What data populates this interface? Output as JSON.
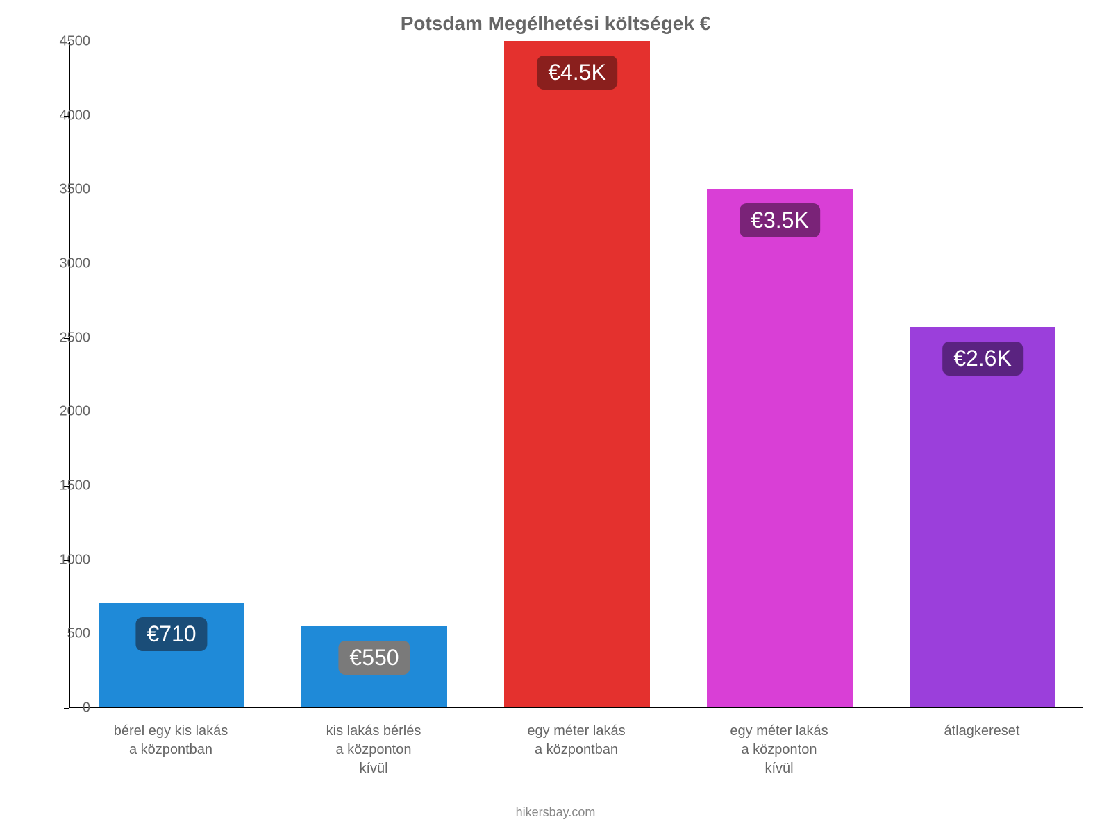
{
  "chart": {
    "type": "bar",
    "title": "Potsdam Megélhetési költségek €",
    "title_fontsize": 28,
    "title_color": "#666666",
    "background_color": "#ffffff",
    "axis_color": "#000000",
    "tick_label_color": "#666666",
    "tick_fontsize": 20,
    "xlabel_fontsize": 20,
    "ylim": [
      0,
      4500
    ],
    "ytick_step": 500,
    "yticks": [
      0,
      500,
      1000,
      1500,
      2000,
      2500,
      3000,
      3500,
      4000,
      4500
    ],
    "bar_width": 0.72,
    "categories": [
      [
        "bérel egy kis lakás",
        "a központban"
      ],
      [
        "kis lakás bérlés",
        "a központon",
        "kívül"
      ],
      [
        "egy méter lakás",
        "a központban"
      ],
      [
        "egy méter lakás",
        "a központon",
        "kívül"
      ],
      [
        "átlagkereset"
      ]
    ],
    "values": [
      710,
      550,
      4500,
      3500,
      2570
    ],
    "bar_colors": [
      "#1f8ad8",
      "#1f8ad8",
      "#e4312e",
      "#d93fd6",
      "#9b3fdb"
    ],
    "value_labels": [
      "€710",
      "€550",
      "€4.5K",
      "€3.5K",
      "€2.6K"
    ],
    "value_label_fontsize": 32,
    "value_label_bg": [
      "#1a4d78",
      "#7a7a7a",
      "#8a1f1d",
      "#7a2378",
      "#5a2380"
    ],
    "value_label_text_color": "#ffffff"
  },
  "source": "hikersbay.com",
  "source_fontsize": 18,
  "source_color": "#888888"
}
